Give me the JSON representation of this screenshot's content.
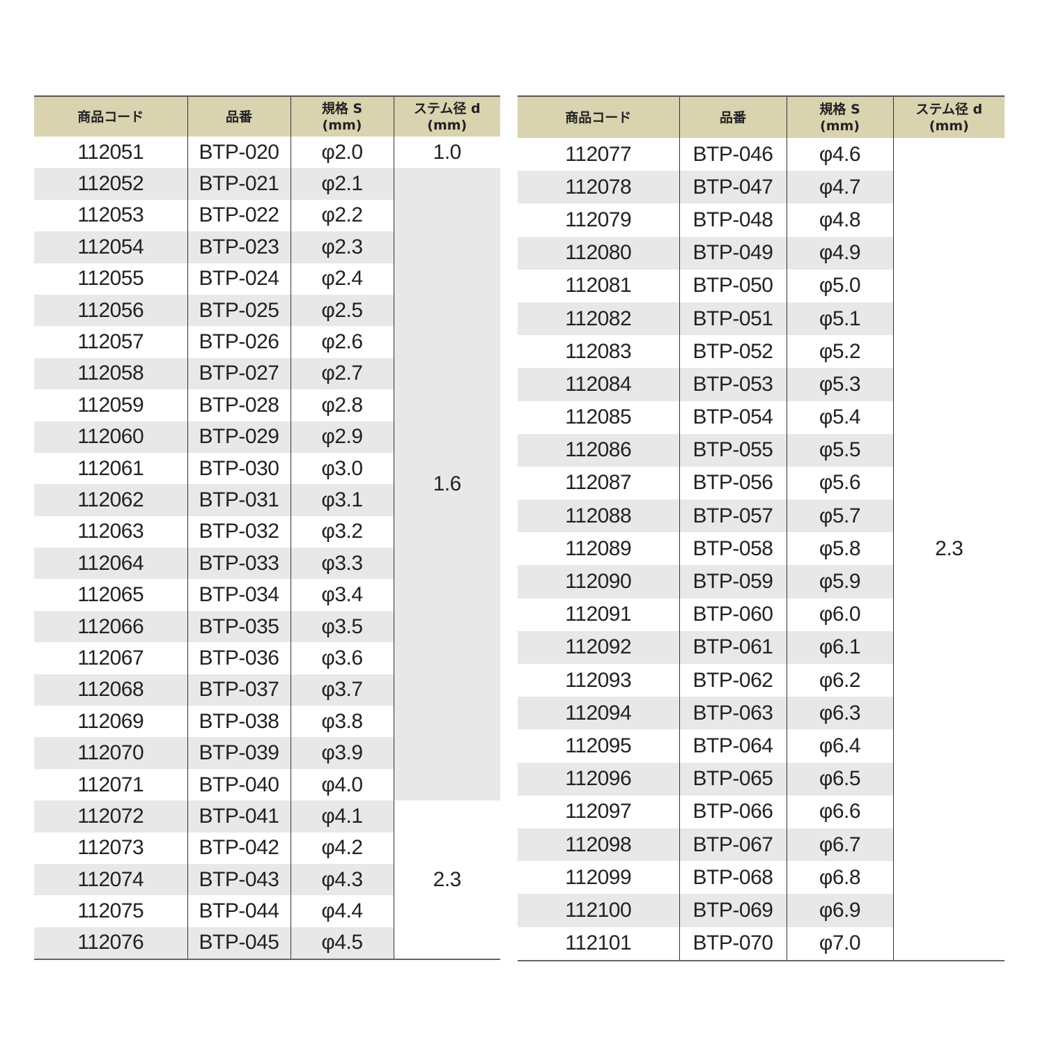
{
  "colors": {
    "header_bg": "#d9d3b0",
    "shade_bg": "#e8e8e8"
  },
  "headers": [
    "商品コード",
    "品番",
    "規格 S\n(mm)",
    "ステム径 d\n(mm)"
  ],
  "left": {
    "rows": [
      [
        "112051",
        "BTP-020",
        "φ2.0"
      ],
      [
        "112052",
        "BTP-021",
        "φ2.1"
      ],
      [
        "112053",
        "BTP-022",
        "φ2.2"
      ],
      [
        "112054",
        "BTP-023",
        "φ2.3"
      ],
      [
        "112055",
        "BTP-024",
        "φ2.4"
      ],
      [
        "112056",
        "BTP-025",
        "φ2.5"
      ],
      [
        "112057",
        "BTP-026",
        "φ2.6"
      ],
      [
        "112058",
        "BTP-027",
        "φ2.7"
      ],
      [
        "112059",
        "BTP-028",
        "φ2.8"
      ],
      [
        "112060",
        "BTP-029",
        "φ2.9"
      ],
      [
        "112061",
        "BTP-030",
        "φ3.0"
      ],
      [
        "112062",
        "BTP-031",
        "φ3.1"
      ],
      [
        "112063",
        "BTP-032",
        "φ3.2"
      ],
      [
        "112064",
        "BTP-033",
        "φ3.3"
      ],
      [
        "112065",
        "BTP-034",
        "φ3.4"
      ],
      [
        "112066",
        "BTP-035",
        "φ3.5"
      ],
      [
        "112067",
        "BTP-036",
        "φ3.6"
      ],
      [
        "112068",
        "BTP-037",
        "φ3.7"
      ],
      [
        "112069",
        "BTP-038",
        "φ3.8"
      ],
      [
        "112070",
        "BTP-039",
        "φ3.9"
      ],
      [
        "112071",
        "BTP-040",
        "φ4.0"
      ],
      [
        "112072",
        "BTP-041",
        "φ4.1"
      ],
      [
        "112073",
        "BTP-042",
        "φ4.2"
      ],
      [
        "112074",
        "BTP-043",
        "φ4.3"
      ],
      [
        "112075",
        "BTP-044",
        "φ4.4"
      ],
      [
        "112076",
        "BTP-045",
        "φ4.5"
      ]
    ],
    "stem_groups": [
      {
        "value": "1.0",
        "rows": 1,
        "shaded": false
      },
      {
        "value": "1.6",
        "rows": 20,
        "shaded": true
      },
      {
        "value": "2.3",
        "rows": 5,
        "shaded": false
      }
    ]
  },
  "right": {
    "rows": [
      [
        "112077",
        "BTP-046",
        "φ4.6"
      ],
      [
        "112078",
        "BTP-047",
        "φ4.7"
      ],
      [
        "112079",
        "BTP-048",
        "φ4.8"
      ],
      [
        "112080",
        "BTP-049",
        "φ4.9"
      ],
      [
        "112081",
        "BTP-050",
        "φ5.0"
      ],
      [
        "112082",
        "BTP-051",
        "φ5.1"
      ],
      [
        "112083",
        "BTP-052",
        "φ5.2"
      ],
      [
        "112084",
        "BTP-053",
        "φ5.3"
      ],
      [
        "112085",
        "BTP-054",
        "φ5.4"
      ],
      [
        "112086",
        "BTP-055",
        "φ5.5"
      ],
      [
        "112087",
        "BTP-056",
        "φ5.6"
      ],
      [
        "112088",
        "BTP-057",
        "φ5.7"
      ],
      [
        "112089",
        "BTP-058",
        "φ5.8"
      ],
      [
        "112090",
        "BTP-059",
        "φ5.9"
      ],
      [
        "112091",
        "BTP-060",
        "φ6.0"
      ],
      [
        "112092",
        "BTP-061",
        "φ6.1"
      ],
      [
        "112093",
        "BTP-062",
        "φ6.2"
      ],
      [
        "112094",
        "BTP-063",
        "φ6.3"
      ],
      [
        "112095",
        "BTP-064",
        "φ6.4"
      ],
      [
        "112096",
        "BTP-065",
        "φ6.5"
      ],
      [
        "112097",
        "BTP-066",
        "φ6.6"
      ],
      [
        "112098",
        "BTP-067",
        "φ6.7"
      ],
      [
        "112099",
        "BTP-068",
        "φ6.8"
      ],
      [
        "112100",
        "BTP-069",
        "φ6.9"
      ],
      [
        "112101",
        "BTP-070",
        "φ7.0"
      ]
    ],
    "stem_groups": [
      {
        "value": "2.3",
        "rows": 25,
        "shaded": false
      }
    ]
  }
}
